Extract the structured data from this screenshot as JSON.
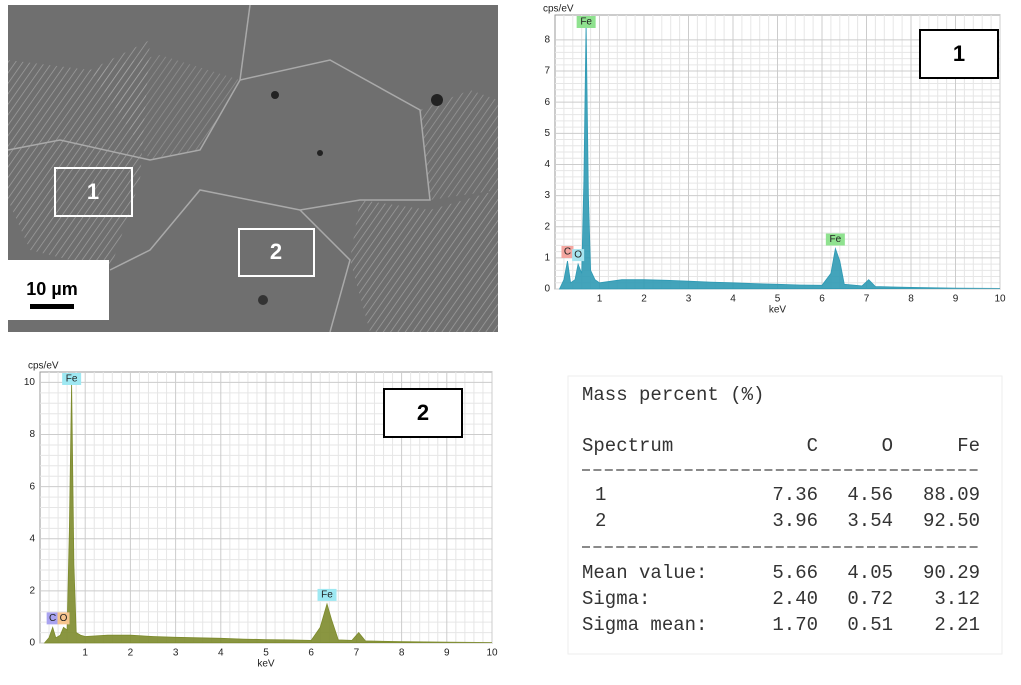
{
  "micrograph": {
    "regions": [
      "1",
      "2"
    ],
    "scale_bar": "10 µm"
  },
  "chart_data": [
    {
      "type": "area",
      "title": "1",
      "x_label": "keV",
      "y_label": "cps/eV",
      "x": [
        0.1,
        0.2,
        0.28,
        0.35,
        0.45,
        0.52,
        0.6,
        0.65,
        0.7,
        0.75,
        0.8,
        0.9,
        1.0,
        1.5,
        2.0,
        2.5,
        3.0,
        3.5,
        4.0,
        4.5,
        5.0,
        5.5,
        6.0,
        6.2,
        6.3,
        6.4,
        6.5,
        6.9,
        7.05,
        7.2,
        8.0,
        9.0,
        10.0
      ],
      "values": [
        0,
        0.3,
        0.9,
        0.2,
        0.3,
        0.8,
        0.5,
        3.5,
        8.6,
        3.0,
        0.6,
        0.3,
        0.2,
        0.3,
        0.3,
        0.28,
        0.25,
        0.22,
        0.2,
        0.17,
        0.15,
        0.13,
        0.12,
        0.5,
        1.3,
        0.9,
        0.15,
        0.1,
        0.3,
        0.08,
        0.05,
        0.03,
        0.02
      ],
      "color": "#2f9ab4",
      "peaks": [
        {
          "label": "C",
          "x": 0.28,
          "color": "#f4a6a0"
        },
        {
          "label": "O",
          "x": 0.52,
          "color": "#a8e4ef"
        },
        {
          "label": "Fe",
          "x": 0.7,
          "color": "#8fe28f"
        },
        {
          "label": "Fe",
          "x": 6.3,
          "color": "#8fe28f"
        }
      ],
      "xlim": [
        0,
        10
      ],
      "xticks": [
        1,
        2,
        3,
        4,
        5,
        6,
        7,
        8,
        9,
        10
      ],
      "ylim": [
        0,
        8.8
      ],
      "yticks": [
        0,
        1,
        2,
        3,
        4,
        5,
        6,
        7,
        8
      ],
      "grid": true
    },
    {
      "type": "area",
      "title": "2",
      "x_label": "keV",
      "y_label": "cps/eV",
      "x": [
        0.1,
        0.2,
        0.28,
        0.35,
        0.45,
        0.52,
        0.6,
        0.65,
        0.7,
        0.75,
        0.8,
        0.9,
        1.0,
        1.5,
        2.0,
        2.5,
        3.0,
        3.5,
        4.0,
        4.5,
        5.0,
        5.5,
        6.0,
        6.2,
        6.35,
        6.45,
        6.6,
        6.9,
        7.05,
        7.2,
        8.0,
        9.0,
        10.0
      ],
      "values": [
        0,
        0.2,
        0.6,
        0.2,
        0.3,
        0.6,
        0.5,
        4.4,
        10,
        3.0,
        0.4,
        0.3,
        0.25,
        0.3,
        0.3,
        0.25,
        0.22,
        0.2,
        0.18,
        0.15,
        0.13,
        0.12,
        0.1,
        0.6,
        1.5,
        0.9,
        0.12,
        0.1,
        0.4,
        0.08,
        0.05,
        0.03,
        0.02
      ],
      "color": "#7d8b2c",
      "peaks": [
        {
          "label": "C",
          "x": 0.28,
          "color": "#a9a3f0"
        },
        {
          "label": "O",
          "x": 0.52,
          "color": "#f6c48e"
        },
        {
          "label": "Fe",
          "x": 0.7,
          "color": "#9ee8f2"
        },
        {
          "label": "Fe",
          "x": 6.35,
          "color": "#9ee8f2"
        }
      ],
      "xlim": [
        0,
        10
      ],
      "xticks": [
        1,
        2,
        3,
        4,
        5,
        6,
        7,
        8,
        9,
        10
      ],
      "ylim": [
        0,
        10.4
      ],
      "yticks": [
        0,
        2,
        4,
        6,
        8,
        10
      ],
      "grid": true
    }
  ],
  "table": {
    "title": "Mass percent (%)",
    "columns": [
      "Spectrum",
      "C",
      "O",
      "Fe"
    ],
    "rows": [
      [
        "1",
        "7.36",
        "4.56",
        "88.09"
      ],
      [
        "2",
        "3.96",
        "3.54",
        "92.50"
      ]
    ],
    "summary": [
      [
        "Mean value:",
        "5.66",
        "4.05",
        "90.29"
      ],
      [
        "Sigma:",
        "2.40",
        "0.72",
        "3.12"
      ],
      [
        "Sigma mean:",
        "1.70",
        "0.51",
        "2.21"
      ]
    ]
  }
}
